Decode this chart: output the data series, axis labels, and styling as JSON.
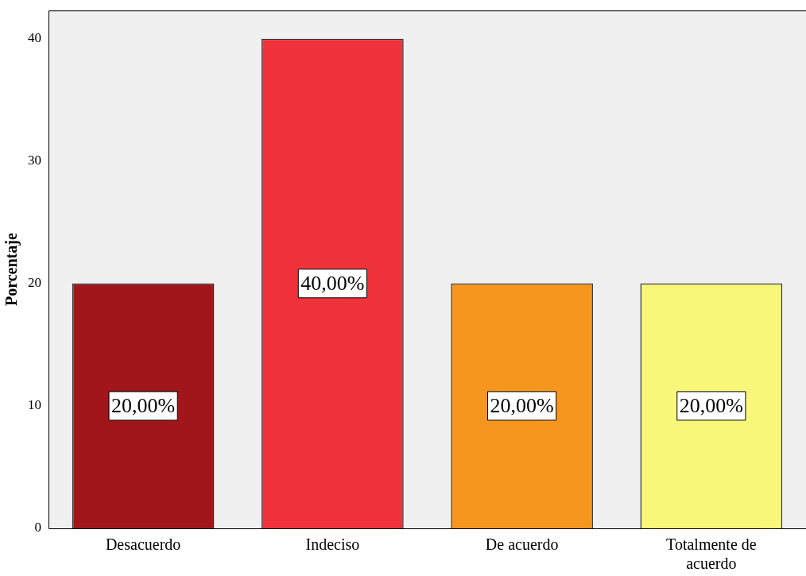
{
  "chart_data": {
    "type": "bar",
    "ylabel": "Porcentaje",
    "categories": [
      "Desacuerdo",
      "Indeciso",
      "De acuerdo",
      "Totalmente de acuerdo"
    ],
    "values": [
      20,
      40,
      20,
      20
    ],
    "colors": [
      "#a0161a",
      "#f0323a",
      "#f7961e",
      "#f8f77a"
    ],
    "value_labels": [
      "20,00%",
      "40,00%",
      "20,00%",
      "20,00%"
    ],
    "ylim": [
      0,
      42.3
    ],
    "yticks": [
      0,
      10,
      20,
      30,
      40
    ]
  }
}
